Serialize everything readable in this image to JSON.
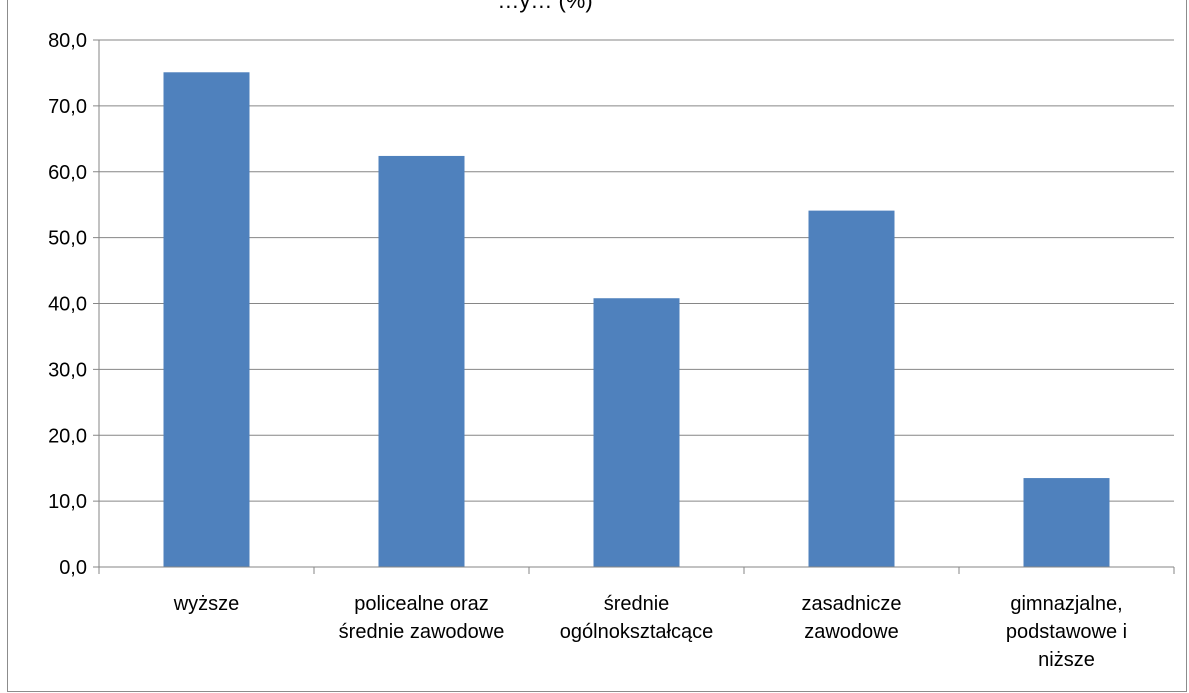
{
  "chart_data": {
    "type": "bar",
    "title": "…y… (%)",
    "categories": [
      [
        "wyższe"
      ],
      [
        "policealne oraz",
        "średnie zawodowe"
      ],
      [
        "średnie",
        "ogólnokształcące"
      ],
      [
        "zasadnicze",
        "zawodowe"
      ],
      [
        "gimnazjalne,",
        "podstawowe i",
        "niższe"
      ]
    ],
    "values": [
      75.1,
      62.4,
      40.8,
      54.1,
      13.5
    ],
    "ylim": [
      0,
      80
    ],
    "yticks": [
      "0,0",
      "10,0",
      "20,0",
      "30,0",
      "40,0",
      "50,0",
      "60,0",
      "70,0",
      "80,0"
    ],
    "grid": true,
    "bar_color": "#4f81bd",
    "grid_color": "#868686"
  }
}
